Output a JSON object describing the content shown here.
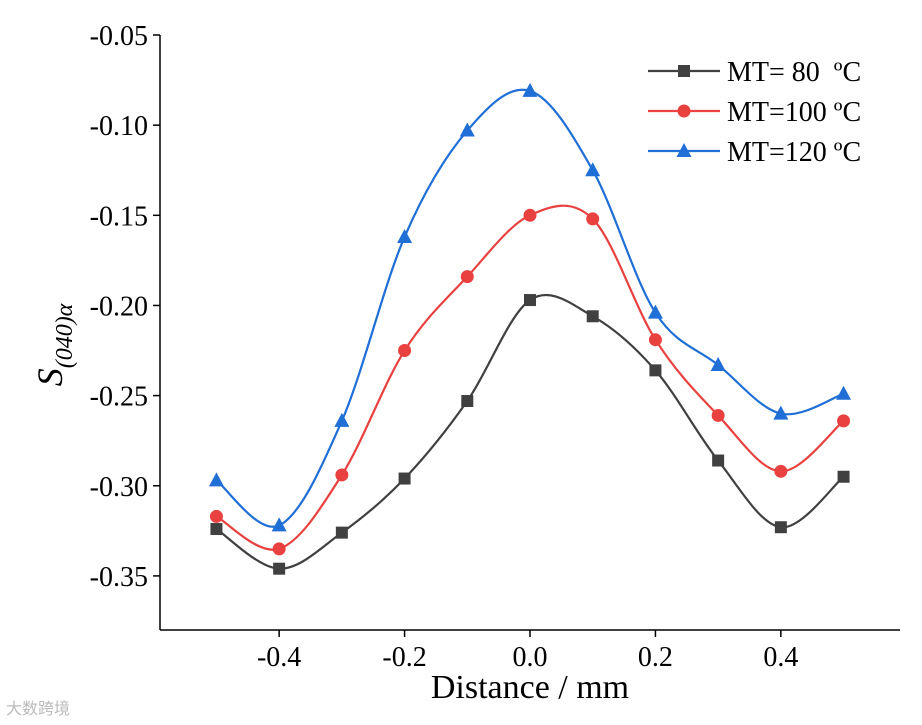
{
  "chart_data": {
    "type": "line",
    "title": "",
    "xlabel": "Distance / mm",
    "ylabel": {
      "main": "S",
      "subscript": "(040)α"
    },
    "xlim": [
      -0.59,
      0.59
    ],
    "ylim": [
      -0.38,
      -0.05
    ],
    "xticks": [
      -0.4,
      -0.2,
      0.0,
      0.2,
      0.4
    ],
    "xtick_labels": [
      "-0.4",
      "-0.2",
      "0.0",
      "0.2",
      "0.4"
    ],
    "yticks": [
      -0.05,
      -0.1,
      -0.15,
      -0.2,
      -0.25,
      -0.3,
      -0.35
    ],
    "ytick_labels": [
      "-0.05",
      "-0.10",
      "-0.15",
      "-0.20",
      "-0.25",
      "-0.30",
      "-0.35"
    ],
    "grid": false,
    "legend_position": "top-right",
    "x": [
      -0.5,
      -0.4,
      -0.3,
      -0.2,
      -0.1,
      0.0,
      0.1,
      0.2,
      0.3,
      0.4,
      0.5
    ],
    "series": [
      {
        "name": "MT= 80  ºC",
        "color": "#404040",
        "marker": "square",
        "values": [
          -0.324,
          -0.346,
          -0.326,
          -0.296,
          -0.253,
          -0.197,
          -0.206,
          -0.236,
          -0.286,
          -0.323,
          -0.295
        ]
      },
      {
        "name": "MT=100 ºC",
        "color": "#e8413f",
        "marker": "circle",
        "values": [
          -0.317,
          -0.335,
          -0.294,
          -0.225,
          -0.184,
          -0.15,
          -0.152,
          -0.219,
          -0.261,
          -0.292,
          -0.264
        ]
      },
      {
        "name": "MT=120 ºC",
        "color": "#1f6fd6",
        "marker": "triangle",
        "values": [
          -0.297,
          -0.322,
          -0.264,
          -0.162,
          -0.103,
          -0.081,
          -0.125,
          -0.204,
          -0.233,
          -0.26,
          -0.249
        ]
      }
    ]
  },
  "watermark": "大数跨境"
}
